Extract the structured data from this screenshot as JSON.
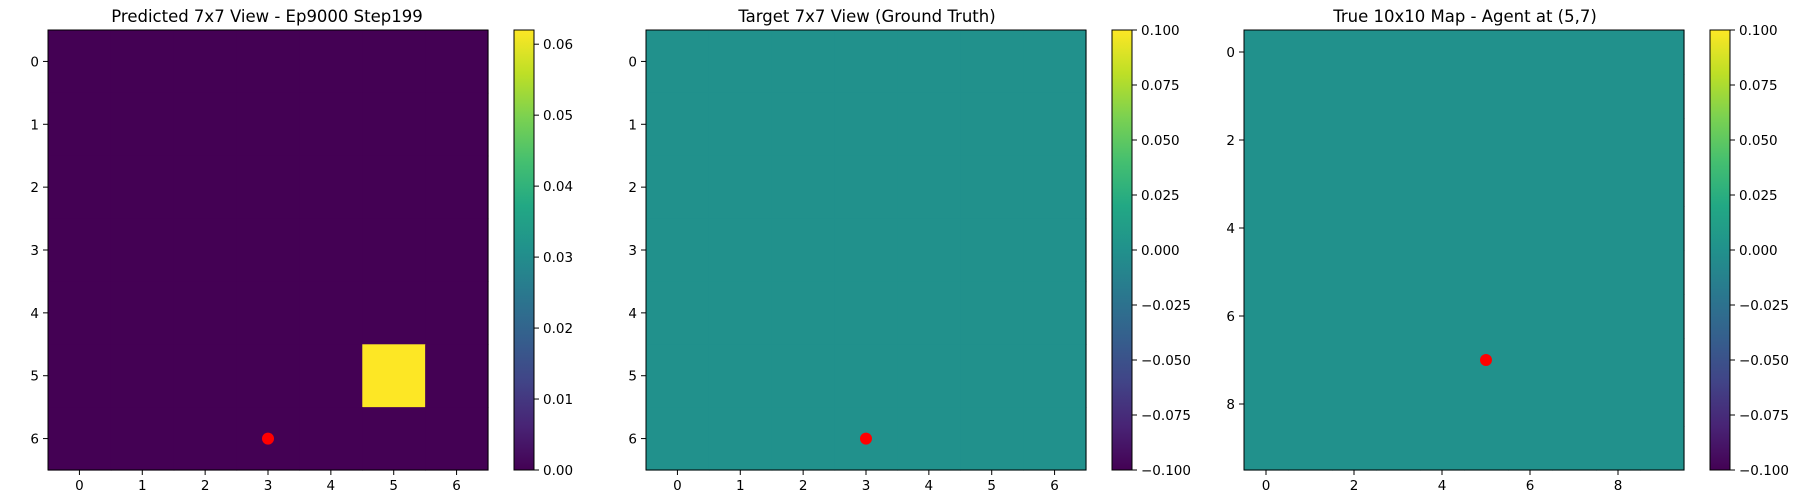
{
  "chart_data": [
    {
      "type": "heatmap",
      "title": "Predicted 7x7 View - Ep9000 Step199",
      "rows": 7,
      "cols": 7,
      "xticks": [
        0,
        1,
        2,
        3,
        4,
        5,
        6
      ],
      "yticks": [
        0,
        1,
        2,
        3,
        4,
        5,
        6
      ],
      "values": [
        [
          0,
          0,
          0,
          0,
          0,
          0,
          0
        ],
        [
          0,
          0,
          0,
          0,
          0,
          0,
          0
        ],
        [
          0,
          0,
          0,
          0,
          0,
          0,
          0
        ],
        [
          0,
          0,
          0,
          0,
          0,
          0,
          0
        ],
        [
          0,
          0,
          0,
          0,
          0,
          0,
          0
        ],
        [
          0,
          0,
          0,
          0,
          0,
          0.062,
          0
        ],
        [
          0,
          0,
          0,
          0,
          0,
          0,
          0
        ]
      ],
      "vmin": 0.0,
      "vmax": 0.062,
      "colorbar_ticks": [
        "0.00",
        "0.01",
        "0.02",
        "0.03",
        "0.04",
        "0.05",
        "0.06"
      ],
      "marker": {
        "x": 3,
        "y": 6,
        "color": "#ff0000"
      }
    },
    {
      "type": "heatmap",
      "title": "Target 7x7 View (Ground Truth)",
      "rows": 7,
      "cols": 7,
      "xticks": [
        0,
        1,
        2,
        3,
        4,
        5,
        6
      ],
      "yticks": [
        0,
        1,
        2,
        3,
        4,
        5,
        6
      ],
      "fill_value": 0.0,
      "vmin": -0.1,
      "vmax": 0.1,
      "colorbar_ticks": [
        "0.100",
        "0.075",
        "0.050",
        "0.025",
        "0.000",
        "−0.025",
        "−0.050",
        "−0.075",
        "−0.100"
      ],
      "marker": {
        "x": 3,
        "y": 6,
        "color": "#ff0000"
      }
    },
    {
      "type": "heatmap",
      "title": "True 10x10 Map - Agent at (5,7)",
      "rows": 10,
      "cols": 10,
      "xticks": [
        0,
        2,
        4,
        6,
        8
      ],
      "yticks": [
        0,
        2,
        4,
        6,
        8
      ],
      "fill_value": 0.0,
      "vmin": -0.1,
      "vmax": 0.1,
      "colorbar_ticks": [
        "0.100",
        "0.075",
        "0.050",
        "0.025",
        "0.000",
        "−0.025",
        "−0.050",
        "−0.075",
        "−0.100"
      ],
      "marker": {
        "x": 5,
        "y": 7,
        "color": "#ff0000"
      }
    }
  ],
  "colormap": {
    "name": "viridis",
    "low": "#440154",
    "mid": "#21918c",
    "high": "#fde725"
  }
}
